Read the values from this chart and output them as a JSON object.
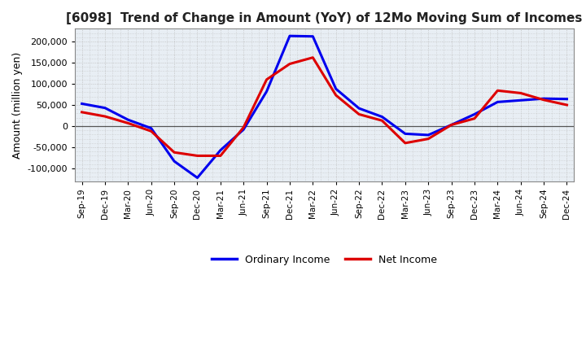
{
  "title": "[6098]  Trend of Change in Amount (YoY) of 12Mo Moving Sum of Incomes",
  "ylabel": "Amount (million yen)",
  "x_labels": [
    "Sep-19",
    "Dec-19",
    "Mar-20",
    "Jun-20",
    "Sep-20",
    "Dec-20",
    "Mar-21",
    "Jun-21",
    "Sep-21",
    "Dec-21",
    "Mar-22",
    "Jun-22",
    "Sep-22",
    "Dec-22",
    "Mar-23",
    "Jun-23",
    "Sep-23",
    "Dec-23",
    "Mar-24",
    "Jun-24",
    "Sep-24",
    "Dec-24"
  ],
  "ordinary_income": [
    53000,
    43000,
    15000,
    -5000,
    -83000,
    -122000,
    -57000,
    -8000,
    82000,
    213000,
    212000,
    88000,
    42000,
    22000,
    -18000,
    -21000,
    3000,
    28000,
    57000,
    61000,
    65000,
    64000
  ],
  "net_income": [
    33000,
    23000,
    7000,
    -12000,
    -62000,
    -70000,
    -70000,
    -3000,
    110000,
    147000,
    162000,
    73000,
    28000,
    13000,
    -40000,
    -30000,
    3000,
    18000,
    84000,
    78000,
    62000,
    50000
  ],
  "ordinary_income_color": "#0000EE",
  "net_income_color": "#DD0000",
  "plot_bg_color": "#E8EEF4",
  "fig_bg_color": "#FFFFFF",
  "grid_color": "#BBBBBB",
  "ylim": [
    -130000,
    230000
  ],
  "yticks": [
    -100000,
    -50000,
    0,
    50000,
    100000,
    150000,
    200000
  ],
  "legend_labels": [
    "Ordinary Income",
    "Net Income"
  ],
  "line_width": 2.2
}
